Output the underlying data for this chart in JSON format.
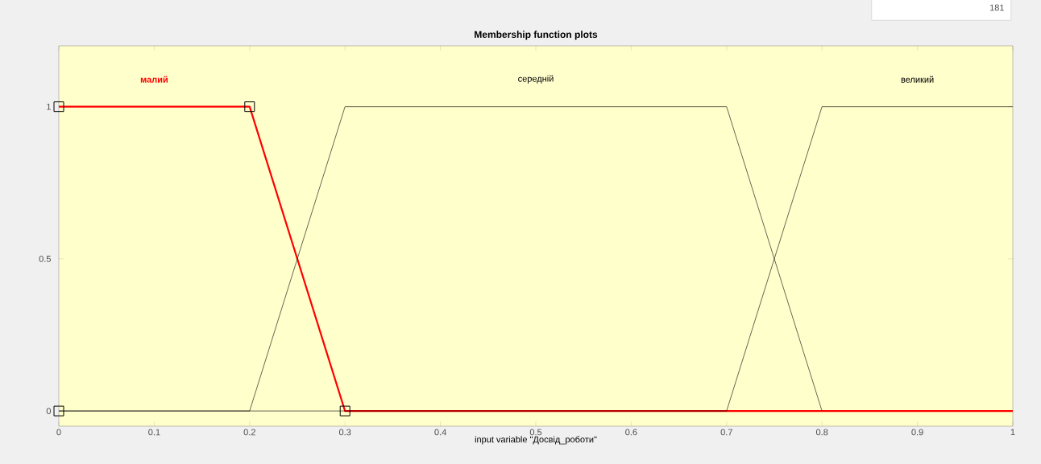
{
  "chart_data": {
    "type": "line",
    "title": "Membership function plots",
    "xlabel": "input variable \"Досвід_роботи\"",
    "xlim": [
      0,
      1
    ],
    "ylim": [
      -0.05,
      1.2
    ],
    "xticks": [
      0,
      0.1,
      0.2,
      0.3,
      0.4,
      0.5,
      0.6,
      0.7,
      0.8,
      0.9,
      1
    ],
    "yticks": [
      0,
      0.5,
      1
    ],
    "series": [
      {
        "name": "малий",
        "color": "#ff0000",
        "x": [
          0,
          0.2,
          0.3,
          1
        ],
        "values": [
          1,
          1,
          0,
          0
        ]
      },
      {
        "name": "середній",
        "color": "#000000",
        "x": [
          0,
          0.2,
          0.3,
          0.7,
          0.8
        ],
        "values": [
          0,
          0,
          1,
          1,
          0
        ]
      },
      {
        "name": "великий",
        "color": "#000000",
        "x": [
          0,
          0.7,
          0.8,
          1
        ],
        "values": [
          0,
          0,
          1,
          1
        ]
      },
      {
        "type": "scatter",
        "marker": "square",
        "color": "#000000",
        "x": [
          0,
          0,
          0.2,
          0.3
        ],
        "values": [
          1,
          0,
          1,
          0
        ]
      }
    ],
    "annotations": [
      "181"
    ]
  }
}
